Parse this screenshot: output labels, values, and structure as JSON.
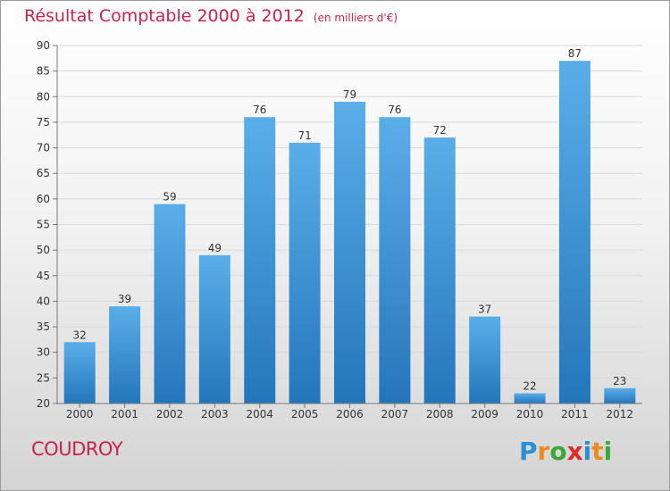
{
  "title": "Résultat Comptable 2000 à 2012",
  "subtitle": "(en milliers d'€)",
  "place": "COUDROY",
  "logo": {
    "letters": [
      "P",
      "r",
      "o",
      "x",
      "i",
      "t",
      "i"
    ],
    "colors": [
      "#2a8fd4",
      "#f08a1c",
      "#3aa83a",
      "#e02b2b",
      "#2a8fd4",
      "#f08a1c",
      "#3aa83a"
    ]
  },
  "colors": {
    "bar": "#3a92d8",
    "title": "#c8234b"
  },
  "chart_data": {
    "type": "bar",
    "categories": [
      "2000",
      "2001",
      "2002",
      "2003",
      "2004",
      "2005",
      "2006",
      "2007",
      "2008",
      "2009",
      "2010",
      "2011",
      "2012"
    ],
    "values": [
      32,
      39,
      59,
      49,
      76,
      71,
      79,
      76,
      72,
      37,
      22,
      87,
      23
    ],
    "ylim": [
      20,
      90
    ],
    "yticks": [
      20,
      25,
      30,
      35,
      40,
      45,
      50,
      55,
      60,
      65,
      70,
      75,
      80,
      85,
      90
    ],
    "grid": true
  }
}
